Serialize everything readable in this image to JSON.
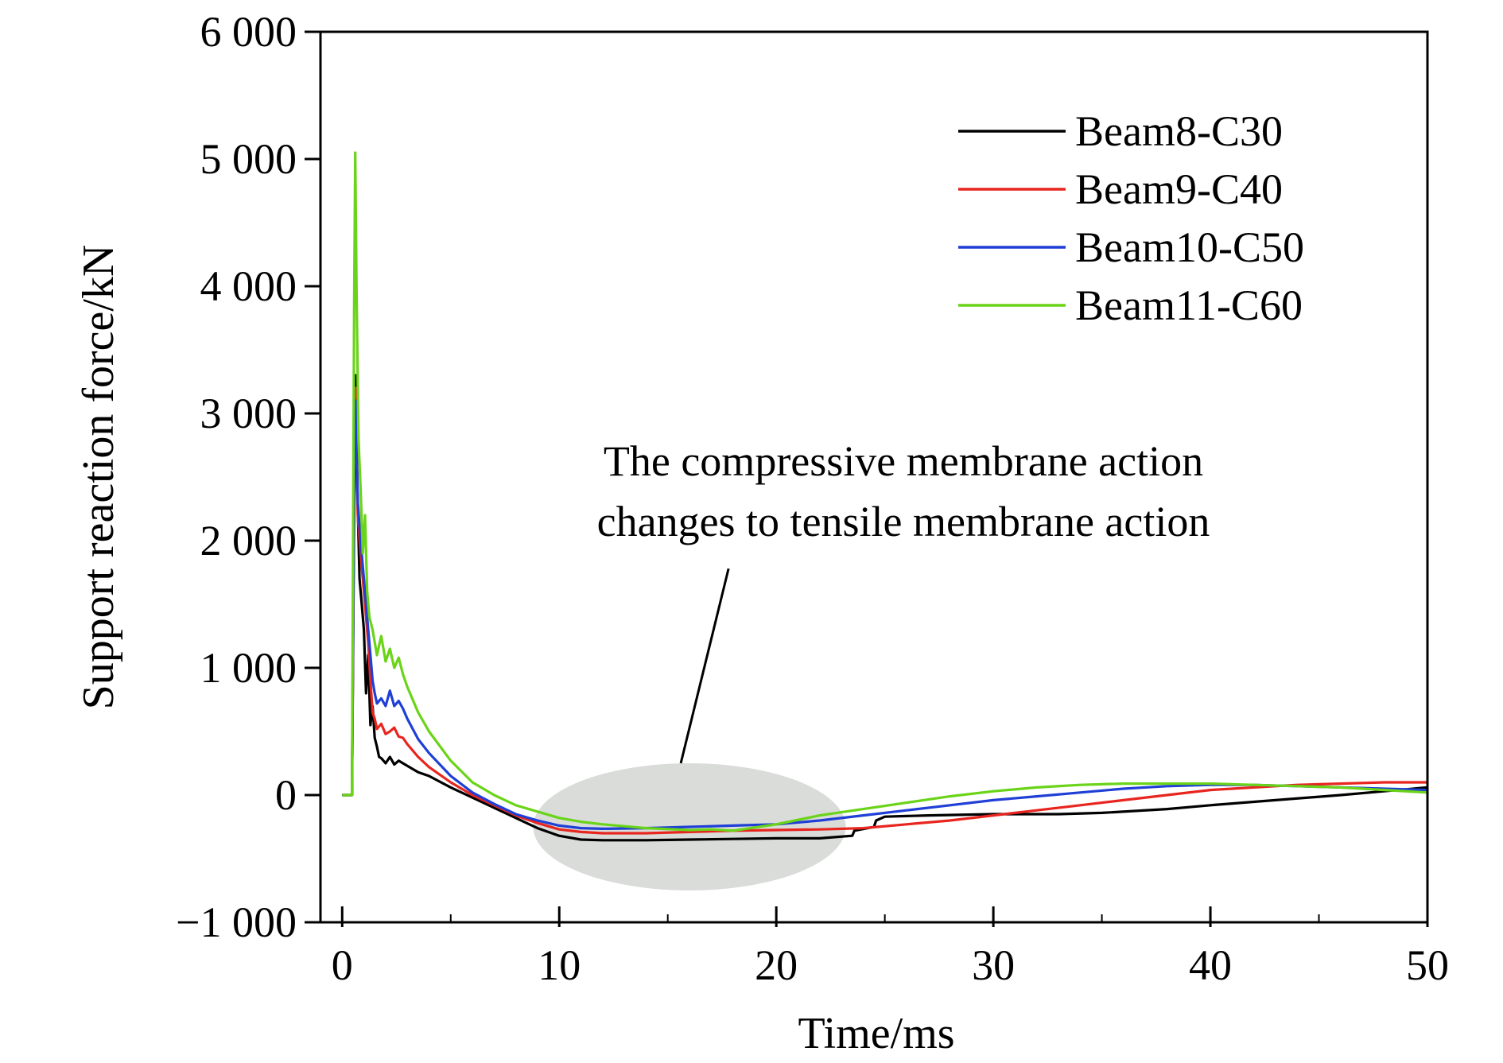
{
  "chart_data": {
    "type": "line",
    "title": "",
    "xlabel": "Time/ms",
    "ylabel": "Support reaction force/kN",
    "xlim": [
      -1,
      50
    ],
    "ylim": [
      -1000,
      6000
    ],
    "x_ticks": [
      0,
      10,
      20,
      30,
      40,
      50
    ],
    "y_ticks": [
      -1000,
      0,
      1000,
      2000,
      3000,
      4000,
      5000,
      6000
    ],
    "x_tick_labels": [
      "0",
      "10",
      "20",
      "30",
      "40",
      "50"
    ],
    "y_tick_labels": [
      "−1 000",
      "0",
      "1 000",
      "2 000",
      "3 000",
      "4 000",
      "5 000",
      "6 000"
    ],
    "grid": false,
    "legend_position": "top-right",
    "annotation": {
      "lines": [
        "The compressive membrane action",
        "changes to tensile membrane action"
      ],
      "highlight_center": [
        16,
        -250
      ],
      "highlight_radius": [
        7.2,
        500
      ],
      "arrow_from": [
        17.8,
        1780
      ],
      "arrow_to": [
        15.6,
        250
      ],
      "highlight_color": "#d9dcd9"
    },
    "series": [
      {
        "name": "Beam8-C30",
        "color": "#000000",
        "points": [
          [
            0,
            0
          ],
          [
            0.3,
            0
          ],
          [
            0.45,
            0
          ],
          [
            0.55,
            2200
          ],
          [
            0.62,
            3300
          ],
          [
            0.7,
            2400
          ],
          [
            0.8,
            1700
          ],
          [
            0.9,
            1500
          ],
          [
            1.0,
            1300
          ],
          [
            1.1,
            800
          ],
          [
            1.2,
            1100
          ],
          [
            1.3,
            550
          ],
          [
            1.4,
            700
          ],
          [
            1.5,
            450
          ],
          [
            1.6,
            380
          ],
          [
            1.7,
            300
          ],
          [
            1.8,
            290
          ],
          [
            2.0,
            250
          ],
          [
            2.2,
            300
          ],
          [
            2.4,
            240
          ],
          [
            2.6,
            270
          ],
          [
            2.8,
            250
          ],
          [
            3.0,
            230
          ],
          [
            3.5,
            180
          ],
          [
            4.0,
            150
          ],
          [
            5,
            60
          ],
          [
            6,
            -20
          ],
          [
            7,
            -100
          ],
          [
            8,
            -180
          ],
          [
            9,
            -260
          ],
          [
            10,
            -320
          ],
          [
            11,
            -350
          ],
          [
            12,
            -355
          ],
          [
            14,
            -355
          ],
          [
            16,
            -350
          ],
          [
            18,
            -345
          ],
          [
            20,
            -340
          ],
          [
            22,
            -340
          ],
          [
            23.5,
            -320
          ],
          [
            23.6,
            -280
          ],
          [
            24.5,
            -250
          ],
          [
            24.6,
            -200
          ],
          [
            25,
            -170
          ],
          [
            27,
            -160
          ],
          [
            30,
            -150
          ],
          [
            33,
            -150
          ],
          [
            35,
            -140
          ],
          [
            38,
            -110
          ],
          [
            40,
            -80
          ],
          [
            43,
            -40
          ],
          [
            46,
            0
          ],
          [
            48,
            30
          ],
          [
            50,
            60
          ]
        ]
      },
      {
        "name": "Beam9-C40",
        "color": "#e8251f",
        "points": [
          [
            0,
            0
          ],
          [
            0.3,
            0
          ],
          [
            0.45,
            0
          ],
          [
            0.55,
            2500
          ],
          [
            0.62,
            3200
          ],
          [
            0.72,
            2200
          ],
          [
            0.85,
            1900
          ],
          [
            0.95,
            1700
          ],
          [
            1.05,
            1500
          ],
          [
            1.2,
            1200
          ],
          [
            1.3,
            900
          ],
          [
            1.4,
            650
          ],
          [
            1.5,
            600
          ],
          [
            1.6,
            520
          ],
          [
            1.8,
            560
          ],
          [
            2.0,
            480
          ],
          [
            2.2,
            500
          ],
          [
            2.4,
            530
          ],
          [
            2.6,
            460
          ],
          [
            2.8,
            450
          ],
          [
            3.0,
            400
          ],
          [
            3.5,
            300
          ],
          [
            4,
            220
          ],
          [
            5,
            100
          ],
          [
            6,
            0
          ],
          [
            7,
            -80
          ],
          [
            8,
            -160
          ],
          [
            9,
            -220
          ],
          [
            10,
            -270
          ],
          [
            11,
            -290
          ],
          [
            12,
            -300
          ],
          [
            14,
            -300
          ],
          [
            16,
            -290
          ],
          [
            18,
            -280
          ],
          [
            20,
            -275
          ],
          [
            22,
            -270
          ],
          [
            24,
            -260
          ],
          [
            26,
            -230
          ],
          [
            28,
            -200
          ],
          [
            30,
            -160
          ],
          [
            32,
            -120
          ],
          [
            34,
            -80
          ],
          [
            36,
            -40
          ],
          [
            38,
            0
          ],
          [
            40,
            40
          ],
          [
            42,
            60
          ],
          [
            44,
            80
          ],
          [
            46,
            90
          ],
          [
            48,
            100
          ],
          [
            50,
            100
          ]
        ]
      },
      {
        "name": "Beam10-C50",
        "color": "#1f3fd6",
        "points": [
          [
            0,
            0
          ],
          [
            0.3,
            0
          ],
          [
            0.45,
            0
          ],
          [
            0.55,
            2600
          ],
          [
            0.62,
            3100
          ],
          [
            0.72,
            2300
          ],
          [
            0.85,
            2000
          ],
          [
            0.95,
            1800
          ],
          [
            1.05,
            1600
          ],
          [
            1.2,
            1300
          ],
          [
            1.3,
            1100
          ],
          [
            1.4,
            900
          ],
          [
            1.5,
            800
          ],
          [
            1.6,
            720
          ],
          [
            1.8,
            760
          ],
          [
            2.0,
            700
          ],
          [
            2.2,
            820
          ],
          [
            2.4,
            700
          ],
          [
            2.6,
            740
          ],
          [
            2.8,
            680
          ],
          [
            3.0,
            600
          ],
          [
            3.5,
            440
          ],
          [
            4,
            330
          ],
          [
            5,
            150
          ],
          [
            6,
            20
          ],
          [
            7,
            -70
          ],
          [
            8,
            -150
          ],
          [
            9,
            -200
          ],
          [
            10,
            -240
          ],
          [
            11,
            -260
          ],
          [
            12,
            -265
          ],
          [
            14,
            -260
          ],
          [
            16,
            -250
          ],
          [
            18,
            -240
          ],
          [
            20,
            -230
          ],
          [
            22,
            -200
          ],
          [
            24,
            -160
          ],
          [
            26,
            -120
          ],
          [
            28,
            -80
          ],
          [
            30,
            -40
          ],
          [
            32,
            -10
          ],
          [
            34,
            20
          ],
          [
            36,
            50
          ],
          [
            38,
            70
          ],
          [
            40,
            80
          ],
          [
            42,
            80
          ],
          [
            44,
            70
          ],
          [
            46,
            60
          ],
          [
            48,
            50
          ],
          [
            50,
            40
          ]
        ]
      },
      {
        "name": "Beam11-C60",
        "color": "#6ad418",
        "points": [
          [
            0,
            0
          ],
          [
            0.3,
            0
          ],
          [
            0.45,
            0
          ],
          [
            0.55,
            3800
          ],
          [
            0.6,
            5050
          ],
          [
            0.66,
            4000
          ],
          [
            0.75,
            2800
          ],
          [
            0.85,
            2400
          ],
          [
            0.95,
            1900
          ],
          [
            1.05,
            2200
          ],
          [
            1.15,
            1600
          ],
          [
            1.25,
            1400
          ],
          [
            1.4,
            1300
          ],
          [
            1.6,
            1100
          ],
          [
            1.8,
            1250
          ],
          [
            2.0,
            1050
          ],
          [
            2.2,
            1150
          ],
          [
            2.4,
            1000
          ],
          [
            2.6,
            1080
          ],
          [
            2.8,
            950
          ],
          [
            3.0,
            850
          ],
          [
            3.5,
            650
          ],
          [
            4,
            500
          ],
          [
            5,
            270
          ],
          [
            6,
            100
          ],
          [
            7,
            0
          ],
          [
            8,
            -80
          ],
          [
            9,
            -130
          ],
          [
            10,
            -180
          ],
          [
            11,
            -210
          ],
          [
            12,
            -230
          ],
          [
            14,
            -260
          ],
          [
            16,
            -275
          ],
          [
            17,
            -270
          ],
          [
            18,
            -280
          ],
          [
            20,
            -230
          ],
          [
            22,
            -160
          ],
          [
            24,
            -110
          ],
          [
            26,
            -60
          ],
          [
            28,
            -10
          ],
          [
            30,
            30
          ],
          [
            32,
            60
          ],
          [
            34,
            80
          ],
          [
            36,
            90
          ],
          [
            38,
            90
          ],
          [
            40,
            90
          ],
          [
            42,
            80
          ],
          [
            44,
            70
          ],
          [
            46,
            60
          ],
          [
            48,
            40
          ],
          [
            50,
            20
          ]
        ]
      }
    ]
  }
}
